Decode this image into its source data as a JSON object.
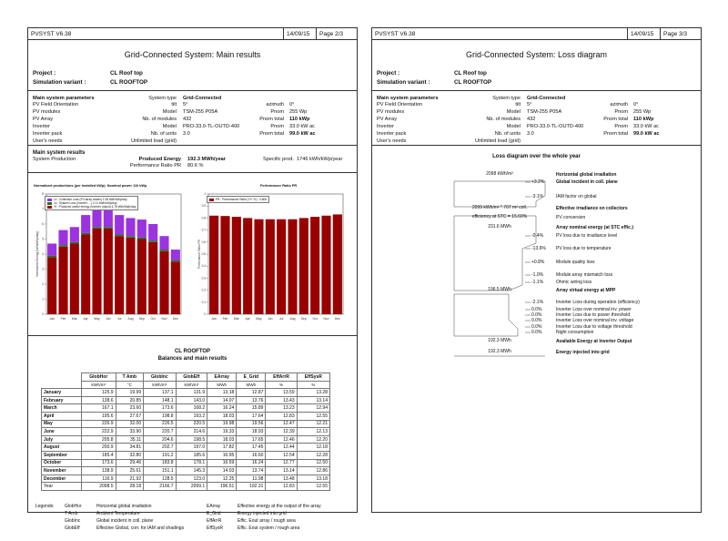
{
  "common": {
    "software": "PVSYST V6.38",
    "date": "14/09/15",
    "project_label": "Project :",
    "project": "CL Roof top",
    "variant_label": "Simulation variant :",
    "variant": "CL ROOFTOP"
  },
  "params": {
    "title": "Main system parameters",
    "rows": [
      {
        "name": "PV Field Orientation",
        "k1": "tilt",
        "v1": "5°",
        "k2": "azimuth",
        "v2": "0°"
      },
      {
        "name": "PV modules",
        "k1": "Model",
        "v1": "TSM-255 P05A",
        "k2": "Pnom",
        "v2": "255 Wp"
      },
      {
        "name": "PV Array",
        "k1": "Nb. of modules",
        "v1": "432",
        "k2": "Pnom total",
        "v2": "110 kWp"
      },
      {
        "name": "Inverter",
        "k1": "Model",
        "v1": "PRO-33.0-TL-OUTD-400",
        "k2": "Pnom",
        "v2": "33.0 kW ac"
      },
      {
        "name": "Inverter pack",
        "k1": "Nb. of units",
        "v1": "3.0",
        "k2": "Pnom total",
        "v2": "99.0 kW ac"
      },
      {
        "name": "User's needs",
        "k1": "Unlimited load (grid)",
        "v1": "",
        "k2": "",
        "v2": ""
      }
    ],
    "type_label": "System type",
    "type_value": "Grid-Connected"
  },
  "page1": {
    "page": "Page 2/3",
    "title": "Grid-Connected System: Main results",
    "results": {
      "title": "Main system results",
      "system_production": "System Production",
      "produced_label": "Produced Energy",
      "produced_value": "192.3 MWh/year",
      "specific_label": "Specific prod.",
      "specific_value": "1746 kWh/kWp/year",
      "pr_label": "Performance Ratio PR",
      "pr_value": "80.6 %"
    },
    "balances": {
      "section_title": "CL ROOFTOP",
      "section_subtitle": "Balances and main results",
      "headers": [
        "GlobHor",
        "T Amb",
        "GlobInc",
        "GlobEff",
        "EArray",
        "E_Grid",
        "EffArrR",
        "EffSysR"
      ],
      "units": [
        "kWh/m²",
        "°C",
        "kWh/m²",
        "kWh/m²",
        "MWh",
        "MWh",
        "%",
        "%"
      ],
      "rows": [
        {
          "m": "January",
          "v": [
            "125.9",
            "19.99",
            "137.1",
            "131.9",
            "13.18",
            "12.87",
            "13.59",
            "13.28"
          ]
        },
        {
          "m": "February",
          "v": [
            "138.6",
            "20.85",
            "148.1",
            "143.0",
            "14.07",
            "13.76",
            "13.43",
            "13.14"
          ]
        },
        {
          "m": "March",
          "v": [
            "167.1",
            "23.60",
            "173.6",
            "168.2",
            "16.24",
            "15.89",
            "13.23",
            "12.94"
          ]
        },
        {
          "m": "April",
          "v": [
            "195.6",
            "27.67",
            "198.8",
            "193.2",
            "18.03",
            "17.64",
            "12.83",
            "12.55"
          ]
        },
        {
          "m": "May",
          "v": [
            "226.9",
            "32.00",
            "226.5",
            "220.5",
            "19.98",
            "19.56",
            "12.47",
            "12.21"
          ]
        },
        {
          "m": "June",
          "v": [
            "222.9",
            "33.90",
            "220.7",
            "214.6",
            "19.33",
            "18.93",
            "12.39",
            "12.13"
          ]
        },
        {
          "m": "July",
          "v": [
            "205.8",
            "35.11",
            "204.6",
            "198.5",
            "18.03",
            "17.65",
            "12.46",
            "12.20"
          ]
        },
        {
          "m": "August",
          "v": [
            "200.9",
            "34.81",
            "202.7",
            "197.0",
            "17.82",
            "17.45",
            "12.44",
            "12.18"
          ]
        },
        {
          "m": "September",
          "v": [
            "185.4",
            "32.80",
            "191.2",
            "185.6",
            "16.95",
            "16.60",
            "12.54",
            "12.28"
          ]
        },
        {
          "m": "October",
          "v": [
            "173.6",
            "29.46",
            "183.8",
            "178.1",
            "16.59",
            "16.24",
            "12.77",
            "12.50"
          ]
        },
        {
          "m": "November",
          "v": [
            "138.9",
            "25.61",
            "151.1",
            "145.3",
            "14.03",
            "13.74",
            "13.14",
            "12.86"
          ]
        },
        {
          "m": "December",
          "v": [
            "116.9",
            "21.92",
            "128.5",
            "123.0",
            "12.25",
            "11.98",
            "13.48",
            "13.18"
          ]
        }
      ],
      "year": {
        "m": "Year",
        "v": [
          "2098.5",
          "28.18",
          "2166.7",
          "2099.1",
          "196.51",
          "192.31",
          "12.83",
          "12.55"
        ]
      }
    },
    "legends": {
      "label": "Legends:",
      "items": [
        {
          "k": "GlobHor",
          "d": "Horizontal global irradiation",
          "k2": "EArray",
          "d2": "Effective energy at the output of the array"
        },
        {
          "k": "T Amb",
          "d": "Ambient Temperature",
          "k2": "E_Grid",
          "d2": "Energy injected into grid"
        },
        {
          "k": "GlobInc",
          "d": "Global incident in coll. plane",
          "k2": "EffArrR",
          "d2": "Effic. Eout array / rough area"
        },
        {
          "k": "GlobEff",
          "d": "Effective Global, corr. for IAM and shadings",
          "k2": "EffSysR",
          "d2": "Effic. Eout system / rough area"
        }
      ]
    }
  },
  "chart_data": [
    {
      "type": "bar",
      "title": "Normalized productions (per installed kWp):  Nominal power 110 kWp",
      "categories": [
        "Jan",
        "Feb",
        "Mar",
        "Apr",
        "May",
        "Jun",
        "Jul",
        "Aug",
        "Sep",
        "Oct",
        "Nov",
        "Dec"
      ],
      "series": [
        {
          "name": "Yf : Produced useful energy  (inverter output)  4.78 kWh/kWp/day",
          "color": "#990000",
          "values": [
            3.8,
            4.5,
            4.7,
            5.3,
            5.7,
            5.7,
            5.2,
            5.1,
            5.0,
            4.8,
            4.2,
            3.5
          ]
        },
        {
          "name": "Ls : System Loss  (inverter, ...)  0.11 kWh/kWp/day",
          "color": "#1a7a1a",
          "values": [
            0.1,
            0.1,
            0.1,
            0.1,
            0.1,
            0.1,
            0.1,
            0.1,
            0.1,
            0.1,
            0.1,
            0.1
          ]
        },
        {
          "name": "Lc : Collection Loss (PV-array losses)  1.08 kWh/kWp/day",
          "color": "#9b33e0",
          "values": [
            0.8,
            1.0,
            1.0,
            1.2,
            1.4,
            1.4,
            1.3,
            1.2,
            1.2,
            1.1,
            0.9,
            0.7
          ]
        }
      ],
      "ylabel": "Normalized Energy [kWh/kWp/day]",
      "ylim": [
        0,
        8
      ]
    },
    {
      "type": "bar",
      "title": "Performance Ratio PR",
      "categories": [
        "Jan",
        "Feb",
        "Mar",
        "Apr",
        "May",
        "Jun",
        "Jul",
        "Aug",
        "Sep",
        "Oct",
        "Nov",
        "Dec"
      ],
      "series": [
        {
          "name": "PR : Performance Ratio (Yf / Yr) :  0.806",
          "color": "#990000",
          "values": [
            0.82,
            0.817,
            0.81,
            0.8,
            0.79,
            0.79,
            0.79,
            0.79,
            0.8,
            0.81,
            0.82,
            0.83
          ]
        }
      ],
      "ylabel": "Performance Ratio PR",
      "ylim": [
        0,
        1.0
      ]
    }
  ],
  "page2": {
    "page": "Page 3/3",
    "title": "Grid-Connected System: Loss diagram",
    "diagram_title": "Loss diagram over the whole year",
    "steps": [
      {
        "value": "2098 kWh/m²",
        "pct": "",
        "label": "Horizontal global irradiation",
        "bold": true
      },
      {
        "value": "",
        "pct": "+3.2%",
        "label": "Global incident in coll. plane",
        "bold": true
      },
      {
        "value": "",
        "pct": "-3.1%",
        "label": "IAM factor on global",
        "bold": false
      },
      {
        "value": "2099 kWh/m² * 707 m² coll.",
        "pct": "",
        "label": "Effective irradiance on collectors",
        "bold": true
      },
      {
        "value": "efficiency at STC = 15.60%",
        "pct": "",
        "label": "PV conversion",
        "bold": false
      },
      {
        "value": "231.6 MWh",
        "pct": "",
        "label": "Array nominal energy (at STC effic.)",
        "bold": true
      },
      {
        "value": "",
        "pct": "-0.4%",
        "label": "PV loss due to irradiance level",
        "bold": false
      },
      {
        "value": "",
        "pct": "-13.6%",
        "label": "PV loss due to temperature",
        "bold": false
      },
      {
        "value": "",
        "pct": "+0.8%",
        "label": "Module quality loss",
        "bold": false
      },
      {
        "value": "",
        "pct": "-1.0%",
        "label": "Module array mismatch loss",
        "bold": false
      },
      {
        "value": "",
        "pct": "-1.1%",
        "label": "Ohmic wiring loss",
        "bold": false
      },
      {
        "value": "196.5 MWh",
        "pct": "",
        "label": "Array virtual energy at MPP",
        "bold": true
      },
      {
        "value": "",
        "pct": "-2.1%",
        "label": "Inverter Loss during operation (efficiency)",
        "bold": false
      },
      {
        "value": "",
        "pct": "0.0%",
        "label": "Inverter Loss over nominal inv. power",
        "bold": false
      },
      {
        "value": "",
        "pct": "0.0%",
        "label": "Inverter Loss due to power threshold",
        "bold": false
      },
      {
        "value": "",
        "pct": "0.0%",
        "label": "Inverter Loss over nominal inv. voltage",
        "bold": false
      },
      {
        "value": "",
        "pct": "0.0%",
        "label": "Inverter Loss due to voltage threshold",
        "bold": false
      },
      {
        "value": "",
        "pct": "0.0%",
        "label": "Night consumption",
        "bold": false
      },
      {
        "value": "192.3 MWh",
        "pct": "",
        "label": "Available Energy at Inverter Output",
        "bold": true
      },
      {
        "value": "192.3 MWh",
        "pct": "",
        "label": "Energy injected into grid",
        "bold": true
      }
    ]
  }
}
